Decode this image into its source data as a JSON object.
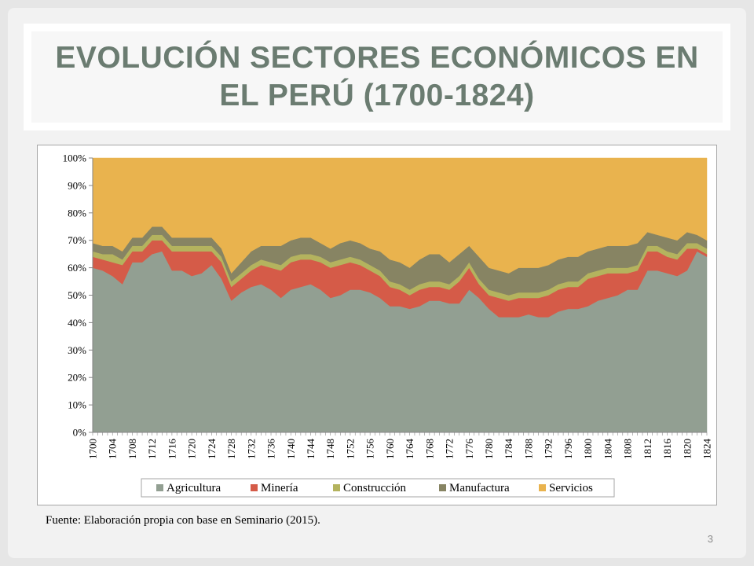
{
  "slide": {
    "title": "EVOLUCIÓN SECTORES ECONÓMICOS EN EL PERÚ (1700-1824)",
    "source": "Fuente: Elaboración propia con base en Seminario (2015).",
    "page_number": "3"
  },
  "colors": {
    "background": "#f2f2f2",
    "title": "#6b7c71",
    "agricultura": "#929f92",
    "mineria": "#d55b48",
    "construccion": "#b4b35e",
    "manufactura": "#878463",
    "servicios": "#e9b34e"
  },
  "chart_data": {
    "type": "area",
    "stacked": "percent",
    "title": "",
    "xlabel": "",
    "ylabel": "",
    "ylim": [
      0,
      100
    ],
    "yticks": [
      "0%",
      "10%",
      "20%",
      "30%",
      "40%",
      "50%",
      "60%",
      "70%",
      "80%",
      "90%",
      "100%"
    ],
    "xticks": [
      "1700",
      "1704",
      "1708",
      "1712",
      "1716",
      "1720",
      "1724",
      "1728",
      "1732",
      "1736",
      "1740",
      "1744",
      "1748",
      "1752",
      "1756",
      "1760",
      "1764",
      "1768",
      "1772",
      "1776",
      "1780",
      "1784",
      "1788",
      "1792",
      "1796",
      "1800",
      "1804",
      "1808",
      "1812",
      "1816",
      "1820",
      "1824"
    ],
    "grid": false,
    "legend_position": "bottom",
    "x_start": 1700,
    "x_end": 1824,
    "anchor_years": [
      1700,
      1702,
      1704,
      1706,
      1708,
      1710,
      1712,
      1714,
      1716,
      1718,
      1720,
      1722,
      1724,
      1726,
      1728,
      1730,
      1732,
      1734,
      1736,
      1738,
      1740,
      1742,
      1744,
      1746,
      1748,
      1750,
      1752,
      1754,
      1756,
      1758,
      1760,
      1762,
      1764,
      1766,
      1768,
      1770,
      1772,
      1774,
      1776,
      1778,
      1780,
      1782,
      1784,
      1786,
      1788,
      1790,
      1792,
      1794,
      1796,
      1798,
      1800,
      1802,
      1804,
      1806,
      1808,
      1810,
      1812,
      1814,
      1816,
      1818,
      1820,
      1822,
      1824
    ],
    "series": [
      {
        "name": "Agricultura",
        "values": [
          60,
          59,
          57,
          54,
          62,
          62,
          65,
          66,
          59,
          59,
          57,
          58,
          61,
          56,
          48,
          51,
          53,
          54,
          52,
          49,
          52,
          53,
          54,
          52,
          49,
          50,
          52,
          52,
          51,
          49,
          46,
          46,
          45,
          46,
          48,
          48,
          47,
          47,
          52,
          49,
          45,
          42,
          42,
          42,
          43,
          42,
          42,
          44,
          45,
          45,
          46,
          48,
          49,
          50,
          52,
          52,
          59,
          59,
          58,
          57,
          59,
          66,
          64
        ]
      },
      {
        "name": "Minería",
        "values": [
          4,
          4,
          5,
          7,
          4,
          4,
          5,
          4,
          7,
          7,
          9,
          8,
          5,
          6,
          5,
          5,
          6,
          7,
          8,
          10,
          10,
          10,
          9,
          10,
          11,
          11,
          10,
          9,
          8,
          8,
          7,
          6,
          5,
          6,
          5,
          5,
          5,
          8,
          8,
          5,
          5,
          7,
          6,
          7,
          6,
          7,
          8,
          8,
          8,
          8,
          10,
          9,
          9,
          8,
          6,
          7,
          7,
          7,
          6,
          6,
          8,
          1,
          1
        ]
      },
      {
        "name": "Construcción",
        "values": [
          2,
          2,
          3,
          2,
          2,
          2,
          2,
          2,
          2,
          2,
          2,
          2,
          2,
          2,
          2,
          2,
          2,
          2,
          2,
          2,
          2,
          2,
          2,
          2,
          2,
          2,
          2,
          2,
          2,
          2,
          2,
          2,
          2,
          2,
          2,
          2,
          2,
          2,
          2,
          2,
          2,
          2,
          2,
          2,
          2,
          2,
          2,
          2,
          2,
          2,
          2,
          2,
          2,
          2,
          2,
          2,
          2,
          2,
          2,
          2,
          2,
          2,
          2
        ]
      },
      {
        "name": "Manufactura",
        "values": [
          3,
          3,
          3,
          3,
          3,
          3,
          3,
          3,
          3,
          3,
          3,
          3,
          3,
          3,
          3,
          4,
          5,
          5,
          6,
          7,
          6,
          6,
          6,
          5,
          5,
          6,
          6,
          6,
          6,
          7,
          8,
          8,
          8,
          9,
          10,
          10,
          8,
          8,
          6,
          8,
          8,
          8,
          8,
          9,
          9,
          9,
          9,
          9,
          9,
          9,
          8,
          8,
          8,
          8,
          8,
          8,
          5,
          4,
          5,
          5,
          4,
          3,
          3
        ]
      },
      {
        "name": "Servicios",
        "values": [
          31,
          32,
          32,
          34,
          29,
          29,
          25,
          25,
          29,
          29,
          29,
          29,
          29,
          33,
          42,
          38,
          34,
          32,
          32,
          32,
          30,
          29,
          29,
          31,
          33,
          31,
          30,
          31,
          33,
          34,
          37,
          38,
          40,
          37,
          35,
          35,
          38,
          35,
          32,
          36,
          40,
          41,
          42,
          40,
          40,
          40,
          39,
          37,
          36,
          36,
          34,
          33,
          32,
          32,
          32,
          31,
          27,
          28,
          29,
          30,
          27,
          28,
          30
        ]
      }
    ]
  }
}
